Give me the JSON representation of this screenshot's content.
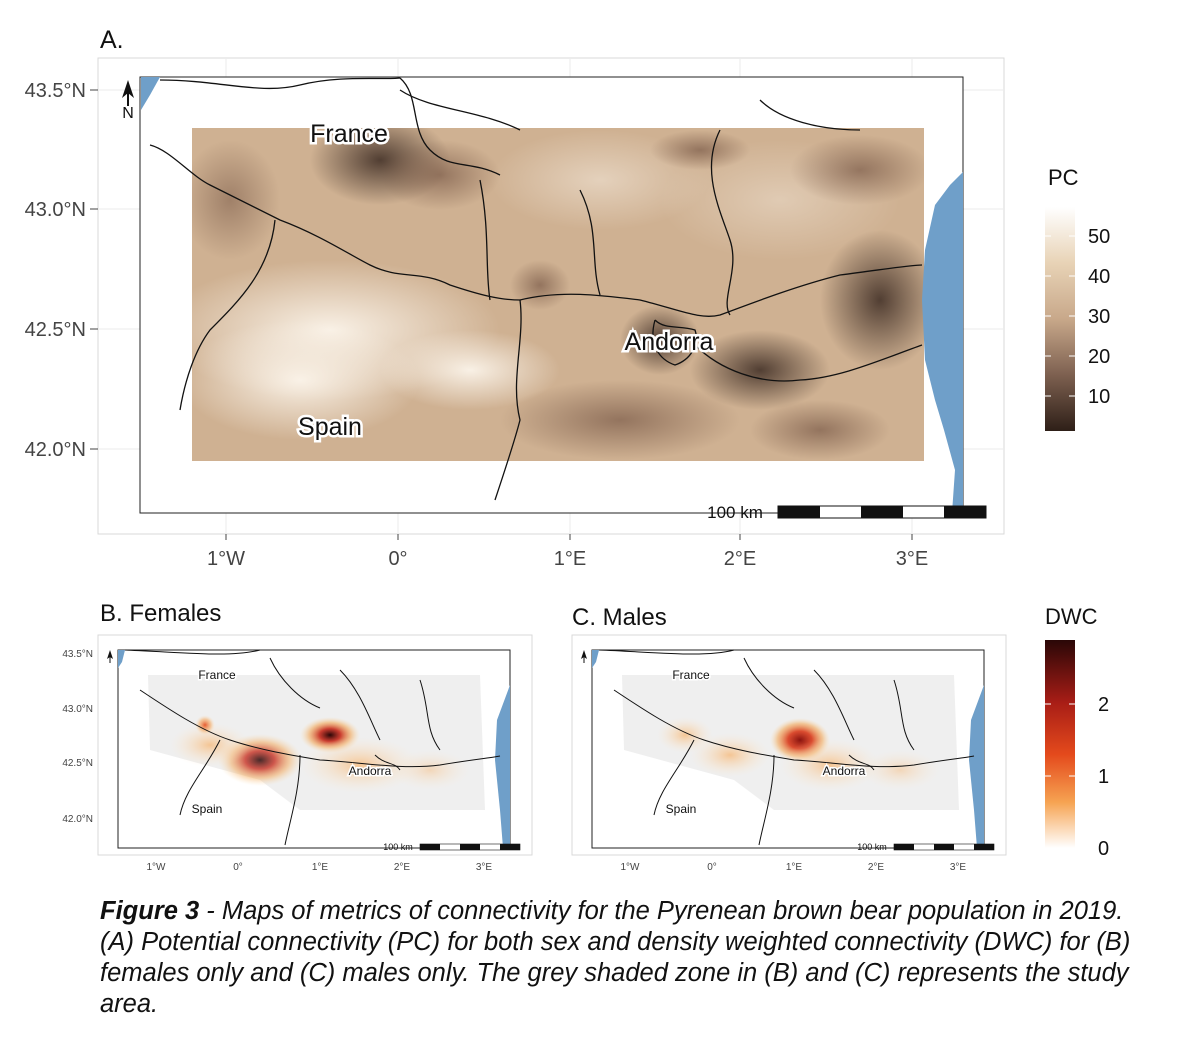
{
  "panel_a": {
    "title": "A.",
    "lat_ticks": [
      "43.5°N",
      "43.0°N",
      "42.5°N",
      "42.0°N"
    ],
    "lon_ticks": [
      "1°W",
      "0°",
      "1°E",
      "2°E",
      "3°E"
    ],
    "labels": {
      "france": "France",
      "andorra": "Andorra",
      "spain": "Spain"
    },
    "scalebar": "100 km",
    "north": "N"
  },
  "legend_pc": {
    "title": "PC",
    "ticks": [
      "50",
      "40",
      "30",
      "20",
      "10"
    ]
  },
  "panel_b": {
    "title": "B. Females",
    "lat_ticks": [
      "43.5°N",
      "43.0°N",
      "42.5°N",
      "42.0°N"
    ],
    "lon_ticks": [
      "1°W",
      "0°",
      "1°E",
      "2°E",
      "3°E"
    ],
    "labels": {
      "france": "France",
      "andorra": "Andorra",
      "spain": "Spain"
    },
    "scalebar": "100 km"
  },
  "panel_c": {
    "title": "C. Males",
    "lon_ticks": [
      "1°W",
      "0°",
      "1°E",
      "2°E",
      "3°E"
    ],
    "labels": {
      "france": "France",
      "andorra": "Andorra",
      "spain": "Spain"
    },
    "scalebar": "100 km"
  },
  "legend_dwc": {
    "title": "DWC",
    "ticks": [
      "2",
      "1",
      "0"
    ]
  },
  "caption": {
    "bold": "Figure 3",
    "text": " - Maps of metrics of connectivity for the Pyrenean brown bear population in 2019. (A) Potential connectivity (PC) for both sex and density weighted connectivity (DWC) for (B) females only and (C) males only. The grey shaded zone in (B) and (C) represents the study area."
  },
  "colors": {
    "sea": "#6f9fc9",
    "pc_low": "#3b2a22",
    "pc_high": "#ffffff",
    "dwc_high": "#2a0707",
    "dwc_mid": "#e44a1c",
    "dwc_low": "#ffffff"
  }
}
